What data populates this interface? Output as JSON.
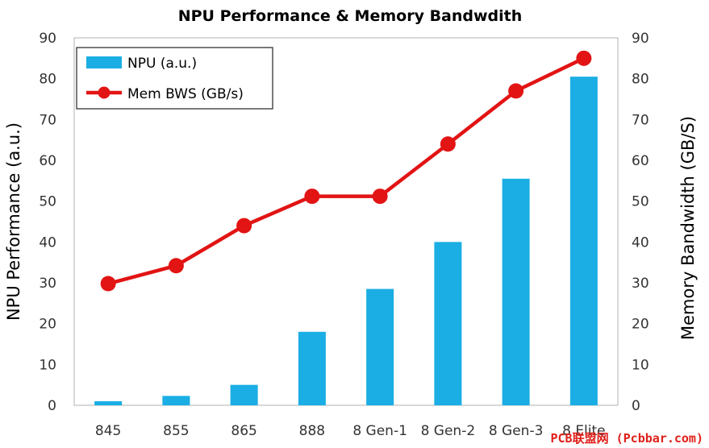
{
  "chart_data": {
    "type": "bar",
    "title": "NPU Performance & Memory Bandwdith",
    "categories": [
      "845",
      "855",
      "865",
      "888",
      "8 Gen-1",
      "8 Gen-2",
      "8 Gen-3",
      "8 Elite"
    ],
    "series": [
      {
        "name": "NPU (a.u.)",
        "type": "bar",
        "axis": "left",
        "color": "#1aaee4",
        "values": [
          1,
          2.3,
          5,
          18,
          28.5,
          40,
          55.5,
          80.5
        ]
      },
      {
        "name": "Mem BWS (GB/s)",
        "type": "line",
        "axis": "right",
        "color": "#e21414",
        "values": [
          29.8,
          34.2,
          44,
          51.2,
          51.2,
          64,
          77,
          85
        ]
      }
    ],
    "ylabel": "NPU Performance (a.u.)",
    "y2label": "Memory Bandwidth (GB/S)",
    "ylim": [
      0,
      90
    ],
    "y2lim": [
      0,
      90
    ],
    "yticks": [
      "0",
      "10",
      "20",
      "30",
      "40",
      "50",
      "60",
      "70",
      "80",
      "90"
    ],
    "y2ticks": [
      "0",
      "10",
      "20",
      "30",
      "40",
      "50",
      "60",
      "70",
      "80",
      "90"
    ],
    "grid": false,
    "legend_position": "top-left"
  },
  "watermark": "PCB联盟网 (Pcbbar.com)"
}
